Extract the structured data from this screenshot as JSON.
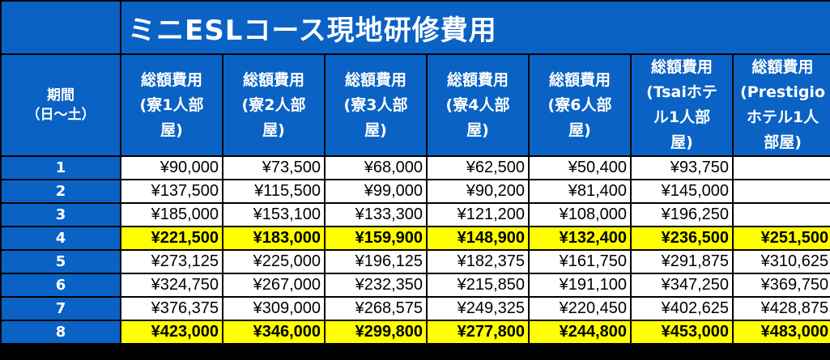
{
  "title": "ミニESLコース現地研修費用",
  "period_label_line1": "期間",
  "period_label_line2": "（日～土）",
  "columns": [
    {
      "line1": "総額費用",
      "line2": "(寮1人部",
      "line3": "屋)",
      "line4": ""
    },
    {
      "line1": "総額費用",
      "line2": "(寮2人部",
      "line3": "屋)",
      "line4": ""
    },
    {
      "line1": "総額費用",
      "line2": "(寮3人部",
      "line3": "屋)",
      "line4": ""
    },
    {
      "line1": "総額費用",
      "line2": "(寮4人部",
      "line3": "屋)",
      "line4": ""
    },
    {
      "line1": "総額費用",
      "line2": "(寮6人部",
      "line3": "屋)",
      "line4": ""
    },
    {
      "line1": "総額費用",
      "line2": "(Tsaiホテ",
      "line3": "ル1人部",
      "line4": "屋)"
    },
    {
      "line1": "総額費用",
      "line2": "(Prestigio",
      "line3": "ホテル1人",
      "line4": "部屋)"
    }
  ],
  "rows": [
    {
      "label": "1",
      "values": [
        "¥90,000",
        "¥73,500",
        "¥68,000",
        "¥62,500",
        "¥50,400",
        "¥93,750",
        ""
      ]
    },
    {
      "label": "2",
      "values": [
        "¥137,500",
        "¥115,500",
        "¥99,000",
        "¥90,200",
        "¥81,400",
        "¥145,000",
        ""
      ]
    },
    {
      "label": "3",
      "values": [
        "¥185,000",
        "¥153,100",
        "¥133,300",
        "¥121,200",
        "¥108,000",
        "¥196,250",
        ""
      ]
    },
    {
      "label": "4",
      "values": [
        "¥221,500",
        "¥183,000",
        "¥159,900",
        "¥148,900",
        "¥132,400",
        "¥236,500",
        "¥251,500"
      ]
    },
    {
      "label": "5",
      "values": [
        "¥273,125",
        "¥225,000",
        "¥196,125",
        "¥182,375",
        "¥161,750",
        "¥291,875",
        "¥310,625"
      ]
    },
    {
      "label": "6",
      "values": [
        "¥324,750",
        "¥267,000",
        "¥232,350",
        "¥215,850",
        "¥191,100",
        "¥347,250",
        "¥369,750"
      ]
    },
    {
      "label": "7",
      "values": [
        "¥376,375",
        "¥309,000",
        "¥268,575",
        "¥249,325",
        "¥220,450",
        "¥402,625",
        "¥428,875"
      ]
    },
    {
      "label": "8",
      "values": [
        "¥423,000",
        "¥346,000",
        "¥299,800",
        "¥277,800",
        "¥244,800",
        "¥453,000",
        "¥483,000"
      ]
    }
  ],
  "highlighted_rows": [
    "4",
    "8"
  ],
  "colors": {
    "header_blue": "#0a62c4",
    "highlight_yellow": "#ffff00",
    "grid": "#000000"
  }
}
